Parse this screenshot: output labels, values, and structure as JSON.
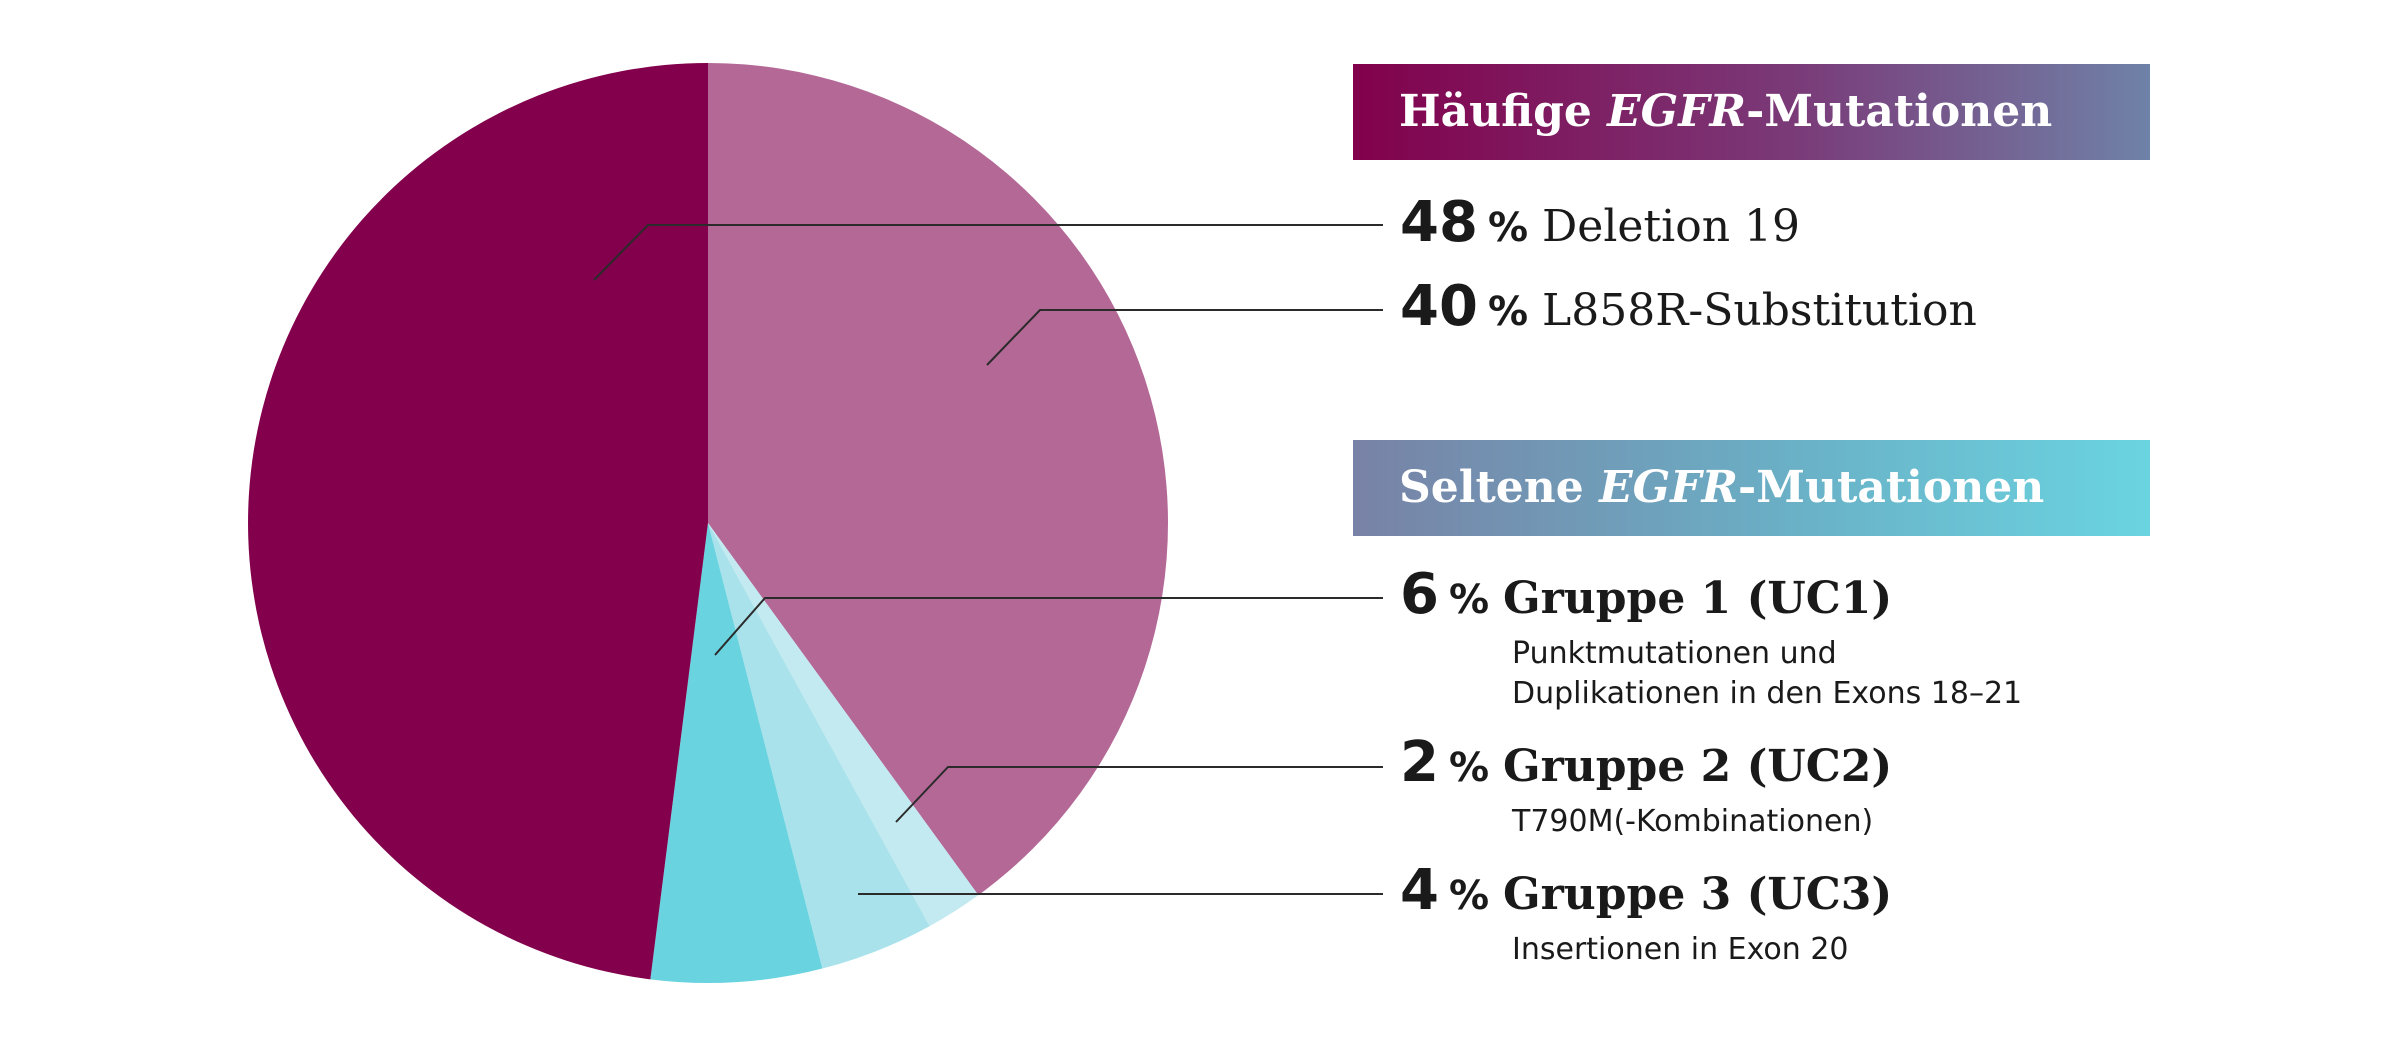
{
  "chart_data": {
    "type": "pie",
    "slices": [
      {
        "label": "L858R-Substitution",
        "value": 40,
        "color": "#b36896"
      },
      {
        "label": "Gruppe 2 (UC2)",
        "value": 2,
        "color": "#c2eaf0"
      },
      {
        "label": "Gruppe 3 (UC3)",
        "value": 4,
        "color": "#a9e2eb"
      },
      {
        "label": "Gruppe 1 (UC1)",
        "value": 6,
        "color": "#69d3e0"
      },
      {
        "label": "Deletion 19",
        "value": 48,
        "color": "#82004c"
      }
    ]
  },
  "legend": {
    "common_title": {
      "prefix": "Häufige ",
      "gene": "EGFR",
      "suffix": "-Mutationen"
    },
    "rare_title": {
      "prefix": "Seltene ",
      "gene": "EGFR",
      "suffix": "-Mutationen"
    },
    "percent_sign": "%",
    "common": [
      {
        "value": "48",
        "label": "Deletion 19"
      },
      {
        "value": "40",
        "label": "L858R-Substitution"
      }
    ],
    "rare": [
      {
        "value": "6",
        "label": "Gruppe 1 (UC1)",
        "desc": [
          "Punktmutationen und",
          "Duplikationen in den Exons 18–21"
        ]
      },
      {
        "value": "2",
        "label": "Gruppe 2 (UC2)",
        "desc": [
          "T790M(-Kombinationen)"
        ]
      },
      {
        "value": "4",
        "label": "Gruppe 3 (UC3)",
        "desc": [
          "Insertionen in Exon 20"
        ]
      }
    ]
  }
}
